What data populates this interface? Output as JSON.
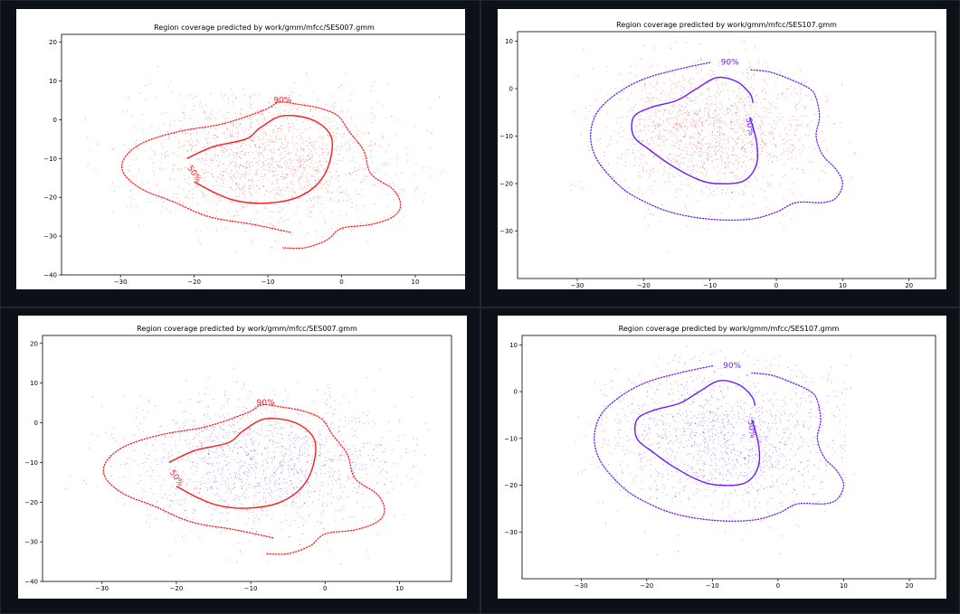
{
  "colors": {
    "red": "#ff1a1a",
    "purple": "#6a1aff",
    "page_bg": "#0d1117"
  },
  "chart_data": [
    {
      "type": "scatter",
      "title": "Region coverage predicted by work/gmm/mfcc/SES007.gmm",
      "points_color": "#ff1a1a",
      "contour_color": "#ff1a1a",
      "xlim": [
        -38,
        17
      ],
      "ylim": [
        -40,
        22
      ],
      "xticks": [
        -30,
        -20,
        -10,
        0,
        10
      ],
      "yticks": [
        20,
        10,
        0,
        -10,
        -20,
        -30,
        -40
      ],
      "cloud": {
        "center": [
          -10,
          -10
        ],
        "spread": [
          8.5,
          8.5
        ],
        "n": 1400,
        "x_range": [
          -35,
          14
        ],
        "y_range": [
          -37,
          14
        ]
      },
      "contours": [
        {
          "label": "50%",
          "style": "solid",
          "points": [
            [
              -21,
              -10
            ],
            [
              -17.5,
              -7
            ],
            [
              -13,
              -5
            ],
            [
              -11,
              -2
            ],
            [
              -8,
              1
            ],
            [
              -4,
              0
            ],
            [
              -1.5,
              -4
            ],
            [
              -1.5,
              -10
            ],
            [
              -3,
              -16
            ],
            [
              -6,
              -20
            ],
            [
              -10,
              -21.5
            ],
            [
              -14,
              -21
            ],
            [
              -17,
              -19
            ],
            [
              -20,
              -16
            ]
          ]
        },
        {
          "label": "90%",
          "style": "dotted",
          "points": [
            [
              -7,
              -29
            ],
            [
              -12,
              -27
            ],
            [
              -18,
              -25
            ],
            [
              -23,
              -21
            ],
            [
              -27,
              -18
            ],
            [
              -29.5,
              -14
            ],
            [
              -29.5,
              -10
            ],
            [
              -27,
              -6
            ],
            [
              -22,
              -3
            ],
            [
              -16,
              -1
            ],
            [
              -10.5,
              2.5
            ],
            [
              -8.5,
              4.5
            ],
            [
              -6,
              4
            ],
            [
              -3,
              3
            ],
            [
              -0.5,
              1
            ],
            [
              1,
              -3
            ],
            [
              3,
              -8
            ],
            [
              4,
              -14
            ],
            [
              7,
              -18
            ],
            [
              8,
              -22
            ],
            [
              7,
              -25
            ],
            [
              4,
              -27
            ],
            [
              0,
              -28
            ],
            [
              -2,
              -31
            ],
            [
              -5,
              -33
            ],
            [
              -8,
              -33
            ]
          ]
        }
      ],
      "labels": [
        {
          "text": "90%",
          "x": -8,
          "y": 5,
          "rot": 0
        },
        {
          "text": "50%",
          "x": -20,
          "y": -14,
          "rot": 55
        }
      ]
    },
    {
      "type": "scatter",
      "title": "Region coverage predicted by work/gmm/mfcc/SES107.gmm",
      "points_color": "#ff1a1a",
      "contour_color": "#6a1aff",
      "xlim": [
        -39,
        24
      ],
      "ylim": [
        -40,
        12
      ],
      "xticks": [
        -30,
        -20,
        -10,
        0,
        10,
        20
      ],
      "yticks": [
        10,
        0,
        -10,
        -20,
        -30
      ],
      "cloud": {
        "center": [
          -10,
          -9
        ],
        "spread": [
          8,
          7
        ],
        "n": 1400,
        "x_range": [
          -31,
          12
        ],
        "y_range": [
          -35,
          10
        ]
      },
      "contours": [
        {
          "label": "50%",
          "style": "solid",
          "points": [
            [
              -3.5,
              -3
            ],
            [
              -4,
              -1
            ],
            [
              -6,
              1.5
            ],
            [
              -9,
              2.3
            ],
            [
              -12,
              0
            ],
            [
              -15,
              -2.5
            ],
            [
              -19,
              -4
            ],
            [
              -21.5,
              -6
            ],
            [
              -21.5,
              -10
            ],
            [
              -19,
              -13
            ],
            [
              -16,
              -16
            ],
            [
              -12,
              -19
            ],
            [
              -9,
              -20
            ],
            [
              -5,
              -19.5
            ],
            [
              -3,
              -16
            ],
            [
              -3,
              -11
            ],
            [
              -4,
              -6
            ]
          ]
        },
        {
          "label": "90%",
          "style": "dotted",
          "points": [
            [
              -10,
              5.5
            ],
            [
              -15,
              4
            ],
            [
              -20,
              2
            ],
            [
              -24,
              -1
            ],
            [
              -27,
              -5
            ],
            [
              -28,
              -10
            ],
            [
              -27,
              -15
            ],
            [
              -24,
              -20
            ],
            [
              -21,
              -23
            ],
            [
              -16,
              -26
            ],
            [
              -10,
              -27.5
            ],
            [
              -4,
              -27.5
            ],
            [
              0,
              -26
            ],
            [
              3,
              -24
            ],
            [
              7,
              -24
            ],
            [
              9,
              -23
            ],
            [
              10,
              -20
            ],
            [
              9,
              -17
            ],
            [
              7,
              -14
            ],
            [
              6,
              -10
            ],
            [
              6.5,
              -6
            ],
            [
              6,
              -2
            ],
            [
              5,
              0
            ],
            [
              2,
              2
            ],
            [
              -1,
              3.5
            ],
            [
              -4,
              4
            ]
          ]
        }
      ],
      "labels": [
        {
          "text": "90%",
          "x": -7,
          "y": 5.5,
          "rot": 0
        },
        {
          "text": "50%",
          "x": -4,
          "y": -8,
          "rot": 80
        }
      ]
    },
    {
      "type": "scatter",
      "title": "Region coverage predicted by work/gmm/mfcc/SES007.gmm",
      "points_color": "#6a1aff",
      "contour_color": "#ff1a1a",
      "xlim": [
        -38,
        17
      ],
      "ylim": [
        -40,
        22
      ],
      "xticks": [
        -30,
        -20,
        -10,
        0,
        10
      ],
      "yticks": [
        20,
        10,
        0,
        -10,
        -20,
        -30,
        -40
      ],
      "cloud": {
        "center": [
          -8,
          -10
        ],
        "spread": [
          9.5,
          8.5
        ],
        "n": 1400,
        "x_range": [
          -35,
          14
        ],
        "y_range": [
          -37,
          14
        ]
      },
      "contours": [
        {
          "label": "50%",
          "style": "solid",
          "points": [
            [
              -21,
              -10
            ],
            [
              -17.5,
              -7
            ],
            [
              -13,
              -5
            ],
            [
              -11,
              -2
            ],
            [
              -8,
              1
            ],
            [
              -4,
              0
            ],
            [
              -1.5,
              -4
            ],
            [
              -1.5,
              -10
            ],
            [
              -3,
              -16
            ],
            [
              -6,
              -20
            ],
            [
              -10,
              -21.5
            ],
            [
              -14,
              -21
            ],
            [
              -17,
              -19
            ],
            [
              -20,
              -16
            ]
          ]
        },
        {
          "label": "90%",
          "style": "dotted",
          "points": [
            [
              -7,
              -29
            ],
            [
              -12,
              -27
            ],
            [
              -18,
              -25
            ],
            [
              -23,
              -21
            ],
            [
              -27,
              -18
            ],
            [
              -29.5,
              -14
            ],
            [
              -29.5,
              -10
            ],
            [
              -27,
              -6
            ],
            [
              -22,
              -3
            ],
            [
              -16,
              -1
            ],
            [
              -10.5,
              2.5
            ],
            [
              -8.5,
              4.5
            ],
            [
              -6,
              4
            ],
            [
              -3,
              3
            ],
            [
              -0.5,
              1
            ],
            [
              1,
              -3
            ],
            [
              3,
              -8
            ],
            [
              4,
              -14
            ],
            [
              7,
              -18
            ],
            [
              8,
              -22
            ],
            [
              7,
              -25
            ],
            [
              4,
              -27
            ],
            [
              0,
              -28
            ],
            [
              -2,
              -31
            ],
            [
              -5,
              -33
            ],
            [
              -8,
              -33
            ]
          ]
        }
      ],
      "labels": [
        {
          "text": "90%",
          "x": -8,
          "y": 5,
          "rot": 0
        },
        {
          "text": "50%",
          "x": -20,
          "y": -14,
          "rot": 55
        }
      ]
    },
    {
      "type": "scatter",
      "title": "Region coverage predicted by work/gmm/mfcc/SES107.gmm",
      "points_color": "#6a1aff",
      "contour_color": "#6a1aff",
      "xlim": [
        -39,
        24
      ],
      "ylim": [
        -40,
        12
      ],
      "xticks": [
        -30,
        -20,
        -10,
        0,
        10,
        20
      ],
      "yticks": [
        10,
        0,
        -10,
        -20,
        -30
      ],
      "cloud": {
        "center": [
          -8,
          -10
        ],
        "spread": [
          9.5,
          8
        ],
        "n": 1400,
        "x_range": [
          -31,
          12
        ],
        "y_range": [
          -35,
          10
        ]
      },
      "contours": [
        {
          "label": "50%",
          "style": "solid",
          "points": [
            [
              -3.5,
              -3
            ],
            [
              -4,
              -1
            ],
            [
              -6,
              1.5
            ],
            [
              -9,
              2.3
            ],
            [
              -12,
              0
            ],
            [
              -15,
              -2.5
            ],
            [
              -19,
              -4
            ],
            [
              -21.5,
              -6
            ],
            [
              -21.5,
              -10
            ],
            [
              -19,
              -13
            ],
            [
              -16,
              -16
            ],
            [
              -12,
              -19
            ],
            [
              -9,
              -20
            ],
            [
              -5,
              -19.5
            ],
            [
              -3,
              -16
            ],
            [
              -3,
              -11
            ],
            [
              -4,
              -6
            ]
          ]
        },
        {
          "label": "90%",
          "style": "dotted",
          "points": [
            [
              -10,
              5.5
            ],
            [
              -15,
              4
            ],
            [
              -20,
              2
            ],
            [
              -24,
              -1
            ],
            [
              -27,
              -5
            ],
            [
              -28,
              -10
            ],
            [
              -27,
              -15
            ],
            [
              -24,
              -20
            ],
            [
              -21,
              -23
            ],
            [
              -16,
              -26
            ],
            [
              -10,
              -27.5
            ],
            [
              -4,
              -27.5
            ],
            [
              0,
              -26
            ],
            [
              3,
              -24
            ],
            [
              7,
              -24
            ],
            [
              9,
              -23
            ],
            [
              10,
              -20
            ],
            [
              9,
              -17
            ],
            [
              7,
              -14
            ],
            [
              6,
              -10
            ],
            [
              6.5,
              -6
            ],
            [
              6,
              -2
            ],
            [
              5,
              0
            ],
            [
              2,
              2
            ],
            [
              -1,
              3.5
            ],
            [
              -4,
              4
            ]
          ]
        }
      ],
      "labels": [
        {
          "text": "90%",
          "x": -7,
          "y": 5.5,
          "rot": 0
        },
        {
          "text": "50%",
          "x": -4,
          "y": -8,
          "rot": 80
        }
      ]
    }
  ]
}
